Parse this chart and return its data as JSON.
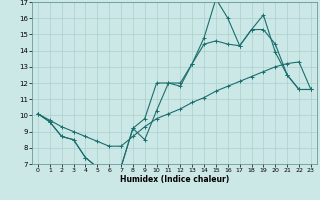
{
  "xlabel": "Humidex (Indice chaleur)",
  "bg_color": "#cce8e6",
  "grid_color": "#aacfcd",
  "line_color": "#1a6e6e",
  "xlim": [
    -0.5,
    23.5
  ],
  "ylim": [
    7,
    17
  ],
  "xticks": [
    0,
    1,
    2,
    3,
    4,
    5,
    6,
    7,
    8,
    9,
    10,
    11,
    12,
    13,
    14,
    15,
    16,
    17,
    18,
    19,
    20,
    21,
    22,
    23
  ],
  "yticks": [
    7,
    8,
    9,
    10,
    11,
    12,
    13,
    14,
    15,
    16,
    17
  ],
  "line1_x": [
    0,
    1,
    2,
    3,
    4,
    5,
    6,
    7,
    8,
    9,
    10,
    11,
    12,
    13,
    14,
    15,
    16,
    17,
    18,
    19,
    20,
    21,
    22,
    23
  ],
  "line1_y": [
    10.1,
    9.6,
    8.7,
    8.5,
    7.4,
    6.8,
    6.8,
    6.8,
    9.2,
    8.5,
    10.3,
    12.0,
    11.8,
    13.2,
    14.8,
    17.2,
    16.0,
    14.3,
    15.3,
    16.2,
    13.9,
    12.5,
    11.6,
    11.6
  ],
  "line2_x": [
    0,
    1,
    2,
    3,
    4,
    5,
    6,
    7,
    8,
    9,
    10,
    11,
    12,
    13,
    14,
    15,
    16,
    17,
    18,
    19,
    20,
    21,
    22,
    23
  ],
  "line2_y": [
    10.1,
    9.6,
    8.7,
    8.5,
    7.4,
    6.8,
    6.8,
    6.8,
    9.2,
    9.8,
    12.0,
    12.0,
    12.0,
    13.2,
    14.4,
    14.6,
    14.4,
    14.3,
    15.3,
    15.3,
    14.4,
    12.5,
    11.6,
    11.6
  ],
  "line3_x": [
    0,
    1,
    2,
    3,
    4,
    5,
    6,
    7,
    8,
    9,
    10,
    11,
    12,
    13,
    14,
    15,
    16,
    17,
    18,
    19,
    20,
    21,
    22,
    23
  ],
  "line3_y": [
    10.1,
    9.7,
    9.3,
    9.0,
    8.7,
    8.4,
    8.1,
    8.1,
    8.7,
    9.3,
    9.8,
    10.1,
    10.4,
    10.8,
    11.1,
    11.5,
    11.8,
    12.1,
    12.4,
    12.7,
    13.0,
    13.2,
    13.3,
    11.6
  ]
}
